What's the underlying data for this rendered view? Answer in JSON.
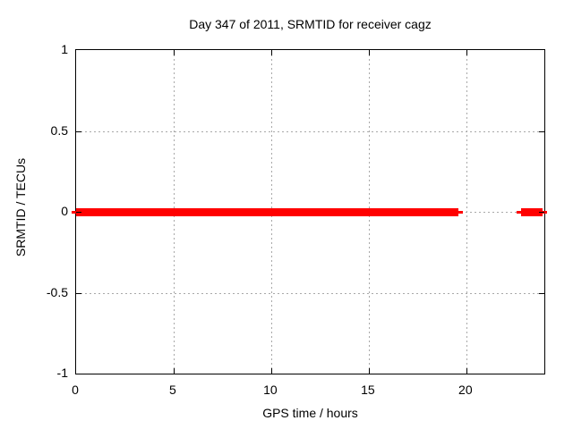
{
  "chart_data": {
    "type": "line",
    "title": "Day 347 of 2011, SRMTID for receiver cagz",
    "xlabel": "GPS time / hours",
    "ylabel": "SRMTID / TECUs",
    "xlim": [
      0,
      24
    ],
    "ylim": [
      -1,
      1
    ],
    "grid": true,
    "legend": "none",
    "x_ticks": [
      {
        "value": 0,
        "label": "0"
      },
      {
        "value": 5,
        "label": "5"
      },
      {
        "value": 10,
        "label": "10"
      },
      {
        "value": 15,
        "label": "15"
      },
      {
        "value": 20,
        "label": "20"
      }
    ],
    "y_ticks": [
      {
        "value": 1,
        "label": "1"
      },
      {
        "value": 0.5,
        "label": "0.5"
      },
      {
        "value": 0,
        "label": "0"
      },
      {
        "value": -0.5,
        "label": "-0.5"
      },
      {
        "value": -1,
        "label": "-1"
      }
    ],
    "colors": {
      "line": "#ff0000",
      "grid": "#a8a8a8",
      "axis": "#000000",
      "text": "#000000",
      "background": "#ffffff"
    },
    "series": [
      {
        "name": "SRMTID",
        "y_value": 0,
        "segments": [
          {
            "x_start": 0,
            "x_end": 19.6,
            "y": 0
          },
          {
            "x_start": 22.8,
            "x_end": 23.9,
            "y": 0
          }
        ]
      }
    ]
  }
}
